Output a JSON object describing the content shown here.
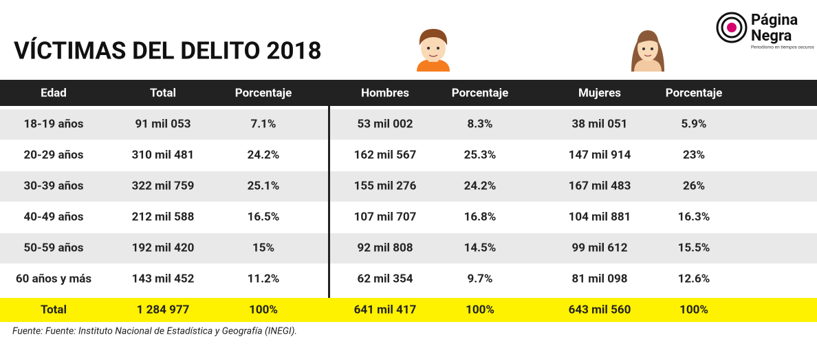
{
  "title": "VÍCTIMAS DEL DELITO 2018",
  "logo": {
    "line1": "Página",
    "line2": "Negra",
    "tagline": "Periodismo en tiempos oscuros"
  },
  "table": {
    "headers": [
      "Edad",
      "Total",
      "Porcentaje",
      "Hombres",
      "Porcentaje",
      "Mujeres",
      "Porcentaje"
    ],
    "rows": [
      [
        "18-19 años",
        "91 mil 053",
        "7.1%",
        "53 mil 002",
        "8.3%",
        "38 mil 051",
        "5.9%"
      ],
      [
        "20-29 años",
        "310 mil 481",
        "24.2%",
        "162 mil 567",
        "25.3%",
        "147 mil 914",
        "23%"
      ],
      [
        "30-39 años",
        "322 mil 759",
        "25.1%",
        "155 mil 276",
        "24.2%",
        "167 mil 483",
        "26%"
      ],
      [
        "40-49 años",
        "212 mil 588",
        "16.5%",
        "107 mil 707",
        "16.8%",
        "104 mil 881",
        "16.3%"
      ],
      [
        "50-59 años",
        "192 mil 420",
        "15%",
        "92 mil 808",
        "14.5%",
        "99 mil 612",
        "15.5%"
      ],
      [
        "60 años y más",
        "143 mil 452",
        "11.2%",
        "62 mil 354",
        "9.7%",
        "81 mil 098",
        "12.6%"
      ]
    ],
    "total": [
      "Total",
      "1 284 977",
      "100%",
      "641 mil 417",
      "100%",
      "643 mil 560",
      "100%"
    ]
  },
  "source": "Fuente: Fuente: Instituto Nacional de Estadística y Geografía (INEGI)."
}
